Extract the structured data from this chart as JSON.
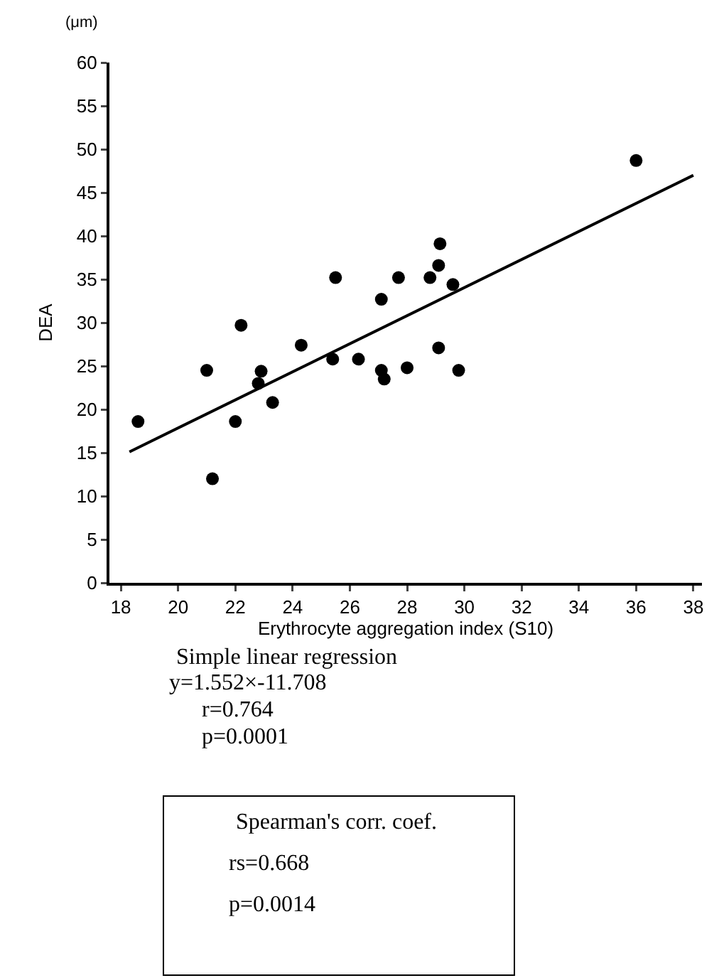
{
  "chart_data": {
    "type": "scatter",
    "xlabel": "Erythrocyte aggregation index (S10)",
    "ylabel": "DEA",
    "xlim": [
      17.6,
      38.3
    ],
    "xticks": [
      18,
      20,
      22,
      24,
      26,
      28,
      30,
      32,
      34,
      36,
      38
    ],
    "ylim": [
      0,
      60
    ],
    "yticks": [
      0,
      5,
      10,
      15,
      20,
      25,
      30,
      35,
      40,
      45,
      50,
      55,
      60
    ],
    "grid": false,
    "marker": "circle",
    "series": [
      {
        "color": "#000000",
        "x": [
          18.6,
          21.0,
          22.2,
          22.0,
          21.2,
          22.9,
          22.8,
          23.3,
          24.3,
          25.4,
          25.5,
          26.3,
          27.1,
          27.1,
          27.2,
          27.7,
          28.0,
          28.8,
          29.1,
          29.15,
          29.1,
          29.6,
          29.8,
          36.0
        ],
        "values": [
          18.6,
          24.5,
          29.7,
          18.6,
          12.0,
          24.4,
          23.0,
          20.8,
          27.4,
          25.8,
          35.2,
          25.8,
          32.7,
          24.5,
          23.5,
          35.2,
          24.8,
          35.2,
          36.6,
          39.1,
          27.1,
          34.4,
          24.5,
          48.7
        ]
      },
      {
        "type": "line",
        "color": "#000000",
        "marker": "none",
        "line_style": "solid",
        "x": [
          18.3,
          38.0
        ],
        "values": [
          15.1,
          47.0
        ]
      }
    ],
    "annotations": [
      "(μm)",
      "Simple linear regression",
      "y=1.552×-11.708",
      "r=0.764",
      "p=0.0001",
      "Spearman's corr. coef.",
      "rs=0.668",
      "p=0.0014"
    ]
  }
}
